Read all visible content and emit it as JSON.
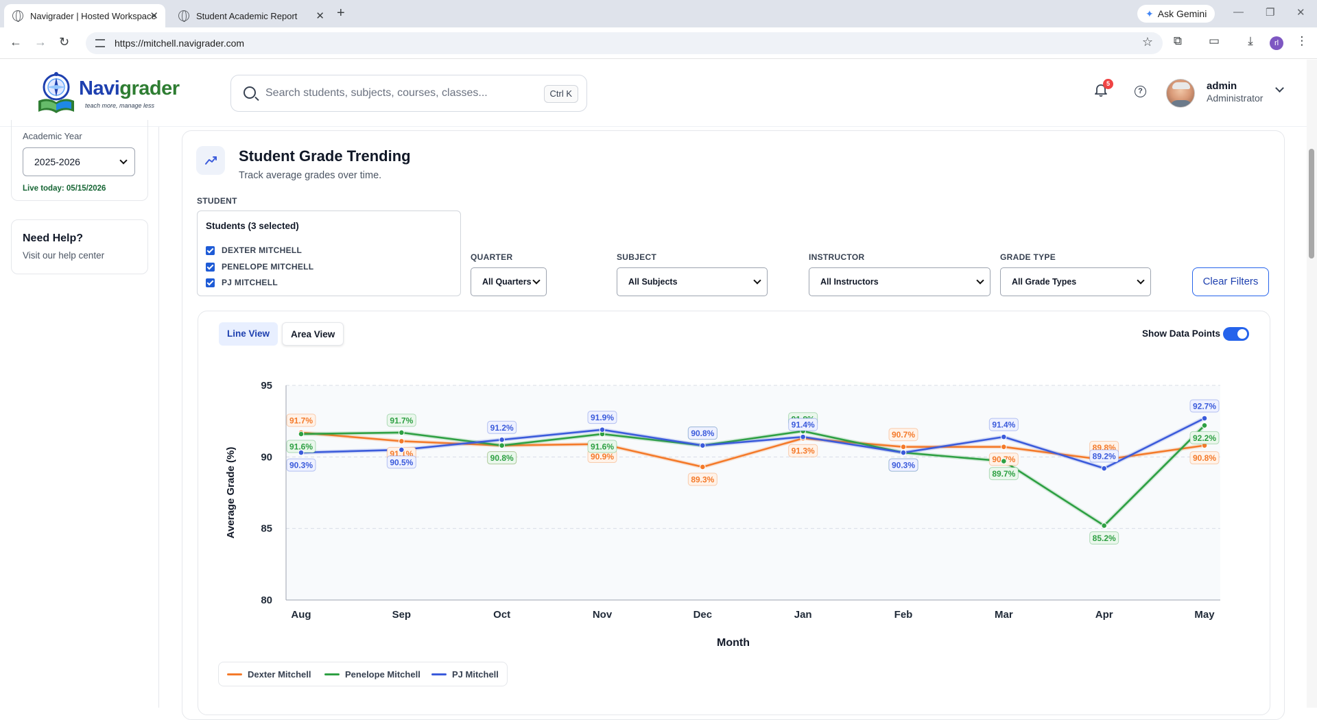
{
  "browser": {
    "tabs": [
      {
        "title": "Navigrader | Hosted Workspace"
      },
      {
        "title": "Student Academic Report"
      }
    ],
    "url": "https://mitchell.navigrader.com",
    "gemini_label": "Ask Gemini",
    "profile_initial": "rl"
  },
  "header": {
    "logo_word_a": "Navi",
    "logo_word_b": "grader",
    "logo_tagline": "teach more, manage less",
    "search_placeholder": "Search students, subjects, courses, classes...",
    "search_shortcut": "Ctrl K",
    "notification_count": "5",
    "user_name": "admin",
    "user_role": "Administrator"
  },
  "sidebar": {
    "academic_year_label": "Academic Year",
    "academic_year_value": "2025-2026",
    "live_today": "Live today: 05/15/2026",
    "help_title": "Need Help?",
    "help_sub": "Visit our help center"
  },
  "page": {
    "title": "Student Grade Trending",
    "subtitle": "Track average grades over time.",
    "filters": {
      "student_label": "STUDENT",
      "students_header": "Students (3 selected)",
      "students": [
        "DEXTER MITCHELL",
        "PENELOPE MITCHELL",
        "PJ MITCHELL"
      ],
      "quarter_label": "QUARTER",
      "quarter_value": "All Quarters",
      "subject_label": "SUBJECT",
      "subject_value": "All Subjects",
      "instructor_label": "INSTRUCTOR",
      "instructor_value": "All Instructors",
      "grade_type_label": "GRADE TYPE",
      "grade_type_value": "All Grade Types",
      "clear_label": "Clear Filters"
    },
    "views": {
      "line": "Line View",
      "area": "Area View",
      "active": "line"
    },
    "show_points_label": "Show Data Points",
    "show_points": true
  },
  "chart_data": {
    "type": "line",
    "categories": [
      "Aug",
      "Sep",
      "Oct",
      "Nov",
      "Dec",
      "Jan",
      "Feb",
      "Mar",
      "Apr",
      "May"
    ],
    "xlabel": "Month",
    "ylabel": "Average Grade (%)",
    "ylim": [
      80,
      95
    ],
    "yticks": [
      80,
      85,
      90,
      95
    ],
    "grid": true,
    "legend": "bottom-left",
    "series": [
      {
        "name": "Dexter Mitchell",
        "color": "#f47a2a",
        "values": [
          91.7,
          91.1,
          90.8,
          90.9,
          89.3,
          91.3,
          90.7,
          90.7,
          89.8,
          90.8
        ]
      },
      {
        "name": "Penelope Mitchell",
        "color": "#2ea043",
        "values": [
          91.6,
          91.7,
          90.8,
          91.6,
          90.8,
          91.8,
          90.3,
          89.7,
          85.2,
          92.2
        ]
      },
      {
        "name": "PJ Mitchell",
        "color": "#3b5bdb",
        "values": [
          90.3,
          90.5,
          91.2,
          91.9,
          90.8,
          91.4,
          90.3,
          91.4,
          89.2,
          92.7
        ]
      }
    ]
  }
}
